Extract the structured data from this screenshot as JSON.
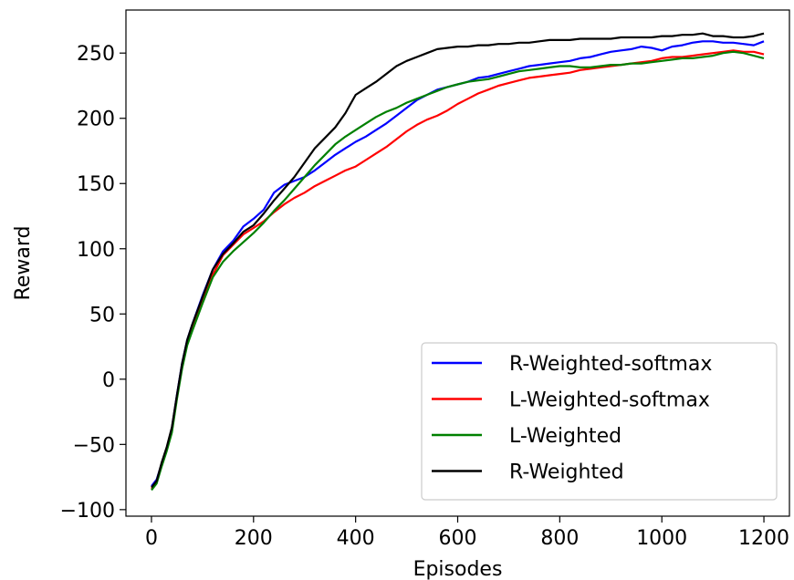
{
  "chart_data": {
    "type": "line",
    "xlabel": "Episodes",
    "ylabel": "Reward",
    "xlim": [
      -50,
      1250
    ],
    "ylim": [
      -105,
      283
    ],
    "xticks": [
      0,
      200,
      400,
      600,
      800,
      1000,
      1200
    ],
    "yticks": [
      -100,
      -50,
      0,
      50,
      100,
      150,
      200,
      250
    ],
    "xtick_labels": [
      "0",
      "200",
      "400",
      "600",
      "800",
      "1000",
      "1200"
    ],
    "ytick_labels": [
      "−100",
      "−50",
      "0",
      "50",
      "100",
      "150",
      "200",
      "250"
    ],
    "grid": false,
    "legend_position": "bottom-right",
    "series": [
      {
        "name": "R-Weighted-softmax",
        "color": "#0000ff",
        "x": [
          0,
          10,
          20,
          30,
          40,
          50,
          60,
          70,
          80,
          100,
          120,
          140,
          160,
          180,
          200,
          220,
          240,
          260,
          280,
          300,
          320,
          340,
          360,
          380,
          400,
          420,
          440,
          460,
          480,
          500,
          520,
          540,
          560,
          580,
          600,
          620,
          640,
          660,
          680,
          700,
          720,
          740,
          760,
          780,
          800,
          820,
          840,
          860,
          880,
          900,
          920,
          940,
          960,
          980,
          1000,
          1020,
          1040,
          1060,
          1080,
          1100,
          1120,
          1140,
          1160,
          1180,
          1200
        ],
        "values": [
          -82,
          -77,
          -65,
          -53,
          -38,
          -12,
          12,
          30,
          42,
          64,
          84,
          98,
          106,
          117,
          123,
          130,
          143,
          149,
          152,
          155,
          160,
          166,
          172,
          177,
          182,
          186,
          191,
          196,
          202,
          208,
          214,
          218,
          222,
          224,
          226,
          228,
          231,
          232,
          234,
          236,
          238,
          240,
          241,
          242,
          243,
          244,
          246,
          247,
          249,
          251,
          252,
          253,
          255,
          254,
          252,
          255,
          256,
          258,
          259,
          259,
          258,
          258,
          257,
          256,
          259
        ]
      },
      {
        "name": "L-Weighted-softmax",
        "color": "#ff0000",
        "x": [
          0,
          10,
          20,
          30,
          40,
          50,
          60,
          70,
          80,
          100,
          120,
          140,
          160,
          180,
          200,
          220,
          240,
          260,
          280,
          300,
          320,
          340,
          360,
          380,
          400,
          420,
          440,
          460,
          480,
          500,
          520,
          540,
          560,
          580,
          600,
          620,
          640,
          660,
          680,
          700,
          720,
          740,
          760,
          780,
          800,
          820,
          840,
          860,
          880,
          900,
          920,
          940,
          960,
          980,
          1000,
          1020,
          1040,
          1060,
          1080,
          1100,
          1120,
          1140,
          1160,
          1180,
          1200
        ],
        "values": [
          -84,
          -79,
          -66,
          -54,
          -40,
          -14,
          10,
          28,
          39,
          60,
          80,
          95,
          103,
          111,
          116,
          121,
          128,
          134,
          139,
          143,
          148,
          152,
          156,
          160,
          163,
          168,
          173,
          178,
          184,
          190,
          195,
          199,
          202,
          206,
          211,
          215,
          219,
          222,
          225,
          227,
          229,
          231,
          232,
          233,
          234,
          235,
          237,
          238,
          239,
          240,
          241,
          242,
          243,
          244,
          246,
          247,
          247,
          248,
          249,
          250,
          251,
          252,
          251,
          251,
          249
        ]
      },
      {
        "name": "L-Weighted",
        "color": "#008000",
        "x": [
          0,
          10,
          20,
          30,
          40,
          50,
          60,
          70,
          80,
          100,
          120,
          140,
          160,
          180,
          200,
          220,
          240,
          260,
          280,
          300,
          320,
          340,
          360,
          380,
          400,
          420,
          440,
          460,
          480,
          500,
          520,
          540,
          560,
          580,
          600,
          620,
          640,
          660,
          680,
          700,
          720,
          740,
          760,
          780,
          800,
          820,
          840,
          860,
          880,
          900,
          920,
          940,
          960,
          980,
          1000,
          1020,
          1040,
          1060,
          1080,
          1100,
          1120,
          1140,
          1160,
          1180,
          1200
        ],
        "values": [
          -85,
          -80,
          -67,
          -55,
          -41,
          -15,
          8,
          26,
          37,
          58,
          78,
          90,
          98,
          105,
          112,
          120,
          129,
          137,
          146,
          155,
          164,
          172,
          180,
          186,
          191,
          196,
          201,
          205,
          208,
          212,
          215,
          218,
          221,
          224,
          226,
          228,
          229,
          230,
          232,
          234,
          236,
          237,
          238,
          239,
          240,
          240,
          239,
          239,
          240,
          241,
          241,
          242,
          242,
          243,
          244,
          245,
          246,
          246,
          247,
          248,
          250,
          251,
          250,
          248,
          246
        ]
      },
      {
        "name": "R-Weighted",
        "color": "#000000",
        "x": [
          0,
          10,
          20,
          30,
          40,
          50,
          60,
          70,
          80,
          100,
          120,
          140,
          160,
          180,
          200,
          220,
          240,
          260,
          280,
          300,
          320,
          340,
          360,
          380,
          400,
          420,
          440,
          460,
          480,
          500,
          520,
          540,
          560,
          580,
          600,
          620,
          640,
          660,
          680,
          700,
          720,
          740,
          760,
          780,
          800,
          820,
          840,
          860,
          880,
          900,
          920,
          940,
          960,
          980,
          1000,
          1020,
          1040,
          1060,
          1080,
          1100,
          1120,
          1140,
          1160,
          1180,
          1200
        ],
        "values": [
          -83,
          -78,
          -64,
          -52,
          -37,
          -12,
          12,
          30,
          42,
          63,
          84,
          96,
          104,
          113,
          118,
          127,
          137,
          146,
          155,
          166,
          177,
          185,
          193,
          204,
          218,
          223,
          228,
          234,
          240,
          244,
          247,
          250,
          253,
          254,
          255,
          255,
          256,
          256,
          257,
          257,
          258,
          258,
          259,
          260,
          260,
          260,
          261,
          261,
          261,
          261,
          262,
          262,
          262,
          262,
          263,
          263,
          264,
          264,
          265,
          263,
          263,
          262,
          262,
          263,
          265
        ]
      }
    ]
  }
}
